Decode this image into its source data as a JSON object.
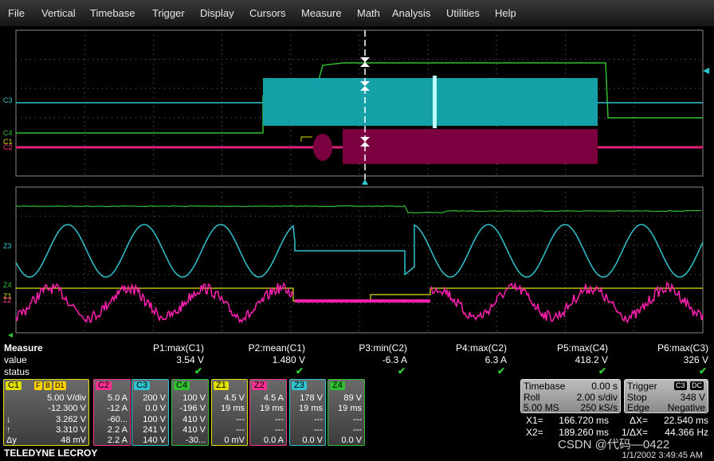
{
  "menu": [
    "File",
    "Vertical",
    "Timebase",
    "Trigger",
    "Display",
    "Cursors",
    "Measure",
    "Math",
    "Analysis",
    "Utilities",
    "Help"
  ],
  "channel_labels": {
    "top": [
      "C3",
      "C4",
      "C1",
      "C2"
    ],
    "bottom": [
      "Z3",
      "Z4",
      "Z1",
      "Z2"
    ]
  },
  "measure": {
    "title": "Measure",
    "row_labels": [
      "value",
      "status"
    ],
    "columns": [
      {
        "name": "P1:max(C1)",
        "value": "3.54 V"
      },
      {
        "name": "P2:mean(C1)",
        "value": "1.480 V"
      },
      {
        "name": "P3:min(C2)",
        "value": "-6.3 A"
      },
      {
        "name": "P4:max(C2)",
        "value": "6.3 A"
      },
      {
        "name": "P5:max(C4)",
        "value": "418.2 V"
      },
      {
        "name": "P6:max(C3)",
        "value": "326 V"
      }
    ]
  },
  "channels": [
    {
      "label": "C1",
      "badges": [
        "F",
        "B",
        "D1"
      ],
      "rows": [
        "5.00 V/div",
        "-12.300 V",
        "3.262 V",
        "3.310 V",
        "48 mV"
      ],
      "markers": [
        "↓",
        "↑",
        "Δy"
      ]
    },
    {
      "label": "C2",
      "rows": [
        "5.0 A",
        "-12 A",
        "-60...",
        "2.2 A",
        "2.2 A"
      ]
    },
    {
      "label": "C3",
      "rows": [
        "200 V",
        "0.0 V",
        "100 V",
        "241 V",
        "140 V"
      ]
    },
    {
      "label": "C4",
      "rows": [
        "100 V",
        "-196 V",
        "410 V",
        "410 V",
        "-30..."
      ]
    },
    {
      "label": "Z1",
      "rows": [
        "4.5 V",
        "19 ms",
        "---",
        "---",
        "0 mV"
      ]
    },
    {
      "label": "Z2",
      "rows": [
        "4.5 A",
        "19 ms",
        "---",
        "---",
        "0.0 A"
      ]
    },
    {
      "label": "Z3",
      "rows": [
        "178 V",
        "19 ms",
        "---",
        "---",
        "0.0 V"
      ]
    },
    {
      "label": "Z4",
      "rows": [
        "89 V",
        "19 ms",
        "---",
        "---",
        "0.0 V"
      ]
    }
  ],
  "timebase": {
    "title": "Timebase",
    "offset": "0.00 s",
    "rows": [
      [
        "Roll",
        "2.00 s/div"
      ],
      [
        "5.00 MS",
        "250 kS/s"
      ]
    ]
  },
  "trigger": {
    "title": "Trigger",
    "badges": [
      "C3",
      "DC"
    ],
    "rows": [
      [
        "Stop",
        "348 V"
      ],
      [
        "Edge",
        "Negative"
      ]
    ]
  },
  "cursors": [
    [
      "X1=",
      "166.720 ms",
      "ΔX=",
      "22.540 ms"
    ],
    [
      "X2=",
      "189.260 ms",
      "1/ΔX=",
      "44.366 Hz"
    ]
  ],
  "brand": "TELEDYNE LECROY",
  "watermark": "CSDN @代码—0422",
  "datetime": "1/1/2002 3:49:45 AM"
}
